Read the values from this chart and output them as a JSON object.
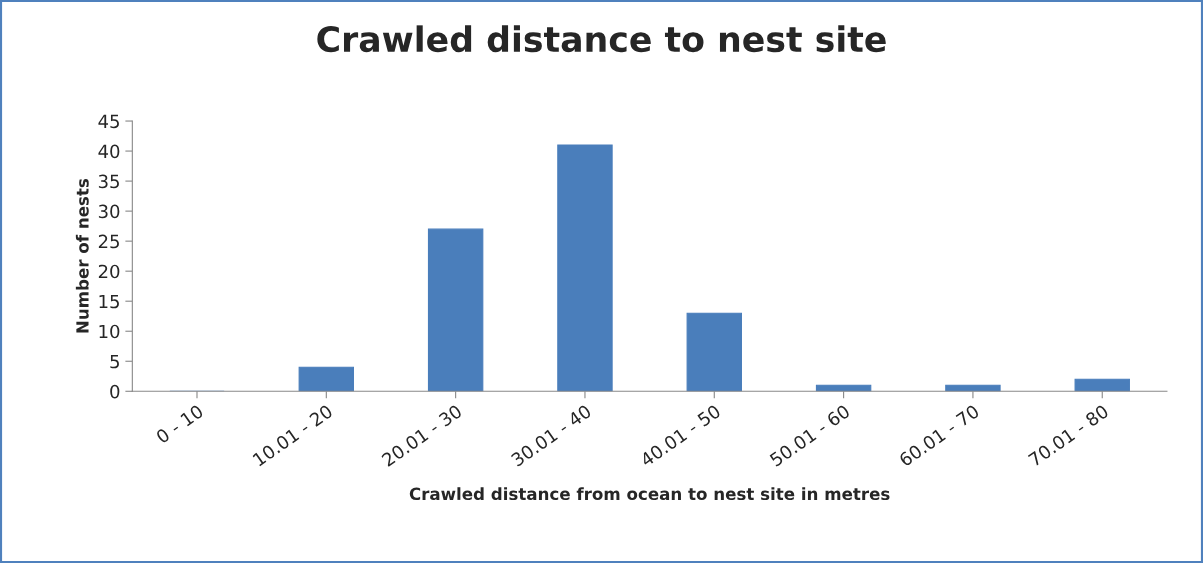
{
  "chart_data": {
    "type": "bar",
    "title": "Crawled distance to nest site",
    "xlabel": "Crawled distance from ocean to nest site in metres",
    "ylabel": "Number of nests",
    "categories": [
      "0 - 10",
      "10.01 - 20",
      "20.01 - 30",
      "30.01 - 40",
      "40.01 - 50",
      "50.01 - 60",
      "60.01 - 70",
      "70.01 - 80"
    ],
    "values": [
      0,
      4,
      27,
      41,
      13,
      1,
      1,
      2
    ],
    "color": "#4a7ebb",
    "ylim": [
      0,
      45
    ],
    "yticks": [
      0,
      5,
      10,
      15,
      20,
      25,
      30,
      35,
      40,
      45
    ],
    "grid": false
  }
}
